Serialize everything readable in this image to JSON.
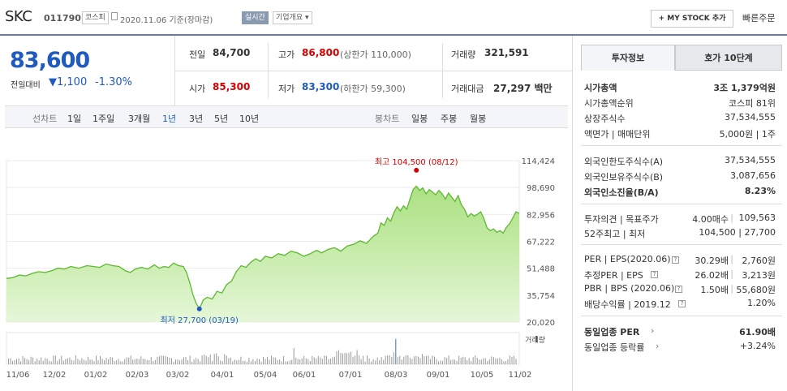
{
  "header": {
    "name": "SKC",
    "code": "011790",
    "market": "코스피",
    "date_text": "2020.11.06 기준(장마감)",
    "realtime": "실시간",
    "company_info": "기업개요",
    "my_stock": "MY STOCK 추가",
    "quick_order": "빠른주문"
  },
  "quote": {
    "price": "83,600",
    "vs_label": "전일대비",
    "change": "1,100",
    "change_pct": "-1.30%",
    "prev_label": "전일",
    "prev": "84,700",
    "high_label": "고가",
    "high": "86,800",
    "upper_limit": "(상한가 110,000)",
    "volume_label": "거래량",
    "volume": "321,591",
    "open_label": "시가",
    "open": "85,300",
    "low_label": "저가",
    "low": "83,300",
    "lower_limit": "(하한가 59,300)",
    "amount_label": "거래대금",
    "amount": "27,297 백만"
  },
  "periods": {
    "line_label": "선차트",
    "items": [
      "1일",
      "1주일",
      "3개월",
      "1년",
      "3년",
      "5년",
      "10년"
    ],
    "selected": "1년",
    "candle_label": "봉차트",
    "candle_items": [
      "일봉",
      "주봉",
      "월봉"
    ]
  },
  "chart_data": {
    "type": "area",
    "y_ticks": [
      114424,
      98690,
      82956,
      67222,
      51488,
      35754,
      20020
    ],
    "ylim": [
      20020,
      114424
    ],
    "x_ticks": [
      "11/06",
      "12/02",
      "01/02",
      "02/03",
      "03/02",
      "04/01",
      "05/04",
      "06/01",
      "07/01",
      "08/03",
      "09/01",
      "10/05",
      "11/02"
    ],
    "high_annotation": "최고 104,500 (08/12)",
    "low_annotation": "최저 27,700 (03/19)",
    "volume_label": "거래량",
    "series_points": [
      [
        0,
        45500
      ],
      [
        8,
        46000
      ],
      [
        16,
        47500
      ],
      [
        24,
        47000
      ],
      [
        32,
        48500
      ],
      [
        40,
        49500
      ],
      [
        48,
        49000
      ],
      [
        56,
        50000
      ],
      [
        64,
        51500
      ],
      [
        72,
        51000
      ],
      [
        80,
        52500
      ],
      [
        90,
        51500
      ],
      [
        100,
        53000
      ],
      [
        108,
        52500
      ],
      [
        116,
        52000
      ],
      [
        124,
        54000
      ],
      [
        132,
        53000
      ],
      [
        140,
        52500
      ],
      [
        148,
        50000
      ],
      [
        154,
        49000
      ],
      [
        160,
        51000
      ],
      [
        168,
        52000
      ],
      [
        176,
        51000
      ],
      [
        184,
        53500
      ],
      [
        190,
        51500
      ],
      [
        196,
        52500
      ],
      [
        202,
        52000
      ],
      [
        208,
        54500
      ],
      [
        214,
        53000
      ],
      [
        220,
        52500
      ],
      [
        224,
        49000
      ],
      [
        228,
        43000
      ],
      [
        232,
        36000
      ],
      [
        236,
        31000
      ],
      [
        240,
        27700
      ],
      [
        245,
        33000
      ],
      [
        250,
        34500
      ],
      [
        256,
        33500
      ],
      [
        262,
        38000
      ],
      [
        268,
        37000
      ],
      [
        274,
        42000
      ],
      [
        280,
        44000
      ],
      [
        286,
        49500
      ],
      [
        292,
        53000
      ],
      [
        298,
        52000
      ],
      [
        304,
        55000
      ],
      [
        310,
        57000
      ],
      [
        316,
        55500
      ],
      [
        322,
        58500
      ],
      [
        330,
        57500
      ],
      [
        338,
        60000
      ],
      [
        346,
        59000
      ],
      [
        354,
        61500
      ],
      [
        362,
        60500
      ],
      [
        370,
        58500
      ],
      [
        378,
        60000
      ],
      [
        386,
        62000
      ],
      [
        392,
        60500
      ],
      [
        400,
        62500
      ],
      [
        408,
        63500
      ],
      [
        416,
        61500
      ],
      [
        424,
        64500
      ],
      [
        432,
        65500
      ],
      [
        440,
        67500
      ],
      [
        448,
        66000
      ],
      [
        456,
        70000
      ],
      [
        462,
        72000
      ],
      [
        466,
        78000
      ],
      [
        470,
        76500
      ],
      [
        474,
        81000
      ],
      [
        478,
        79000
      ],
      [
        482,
        84000
      ],
      [
        486,
        87500
      ],
      [
        490,
        85000
      ],
      [
        494,
        88000
      ],
      [
        498,
        86000
      ],
      [
        502,
        92000
      ],
      [
        506,
        97500
      ],
      [
        510,
        99500
      ],
      [
        514,
        97000
      ],
      [
        518,
        98500
      ],
      [
        522,
        95000
      ],
      [
        526,
        97500
      ],
      [
        530,
        96000
      ],
      [
        534,
        94500
      ],
      [
        538,
        97000
      ],
      [
        542,
        95000
      ],
      [
        546,
        92000
      ],
      [
        550,
        95500
      ],
      [
        554,
        93000
      ],
      [
        558,
        90500
      ],
      [
        562,
        94000
      ],
      [
        566,
        88500
      ],
      [
        570,
        86000
      ],
      [
        574,
        81500
      ],
      [
        578,
        83500
      ],
      [
        582,
        82000
      ],
      [
        586,
        83000
      ],
      [
        590,
        84500
      ],
      [
        594,
        80500
      ],
      [
        598,
        75000
      ],
      [
        602,
        73500
      ],
      [
        606,
        74500
      ],
      [
        610,
        72500
      ],
      [
        614,
        73500
      ],
      [
        618,
        72000
      ],
      [
        622,
        75500
      ],
      [
        626,
        77500
      ],
      [
        630,
        81000
      ],
      [
        634,
        84500
      ],
      [
        638,
        83600
      ]
    ]
  },
  "panel": {
    "tab_invest": "투자정보",
    "tab_ask": "호가 10단계",
    "rows1": [
      {
        "k": "시가총액",
        "v": "3조 1,379억원"
      },
      {
        "k": "시가총액순위",
        "v": "코스피 81위"
      },
      {
        "k": "상장주식수",
        "v": "37,534,555"
      },
      {
        "k": "액면가 | 매매단위",
        "v": "5,000원 | 1주"
      }
    ],
    "rows2": [
      {
        "k": "외국인한도주식수(A)",
        "v": "37,534,555"
      },
      {
        "k": "외국인보유주식수(B)",
        "v": "3,087,656"
      },
      {
        "k": "외국인소진율(B/A)",
        "v": "8.23%"
      }
    ],
    "opinion_k": "투자의견 | 목표주가",
    "opinion_v": "4.00매수",
    "target": "109,563",
    "w52_k": "52주최고 | 최저",
    "w52_v": "104,500 | 27,700",
    "per_k": "PER | EPS(2020.06)",
    "per_v": "30.29배",
    "eps_v": "2,760원",
    "eper_k": "추정PER | EPS",
    "eper_v": "26.02배",
    "eeps_v": "3,213원",
    "pbr_k": "PBR | BPS (2020.06)",
    "pbr_v": "1.50배",
    "bps_v": "55,680원",
    "div_k": "배당수익률 | 2019.12",
    "div_v": "1.20%",
    "ind_per_k": "동일업종 PER",
    "ind_per_v": "61.90배",
    "ind_rate_k": "동일업종 등락률",
    "ind_rate_v": "+3.24%"
  }
}
